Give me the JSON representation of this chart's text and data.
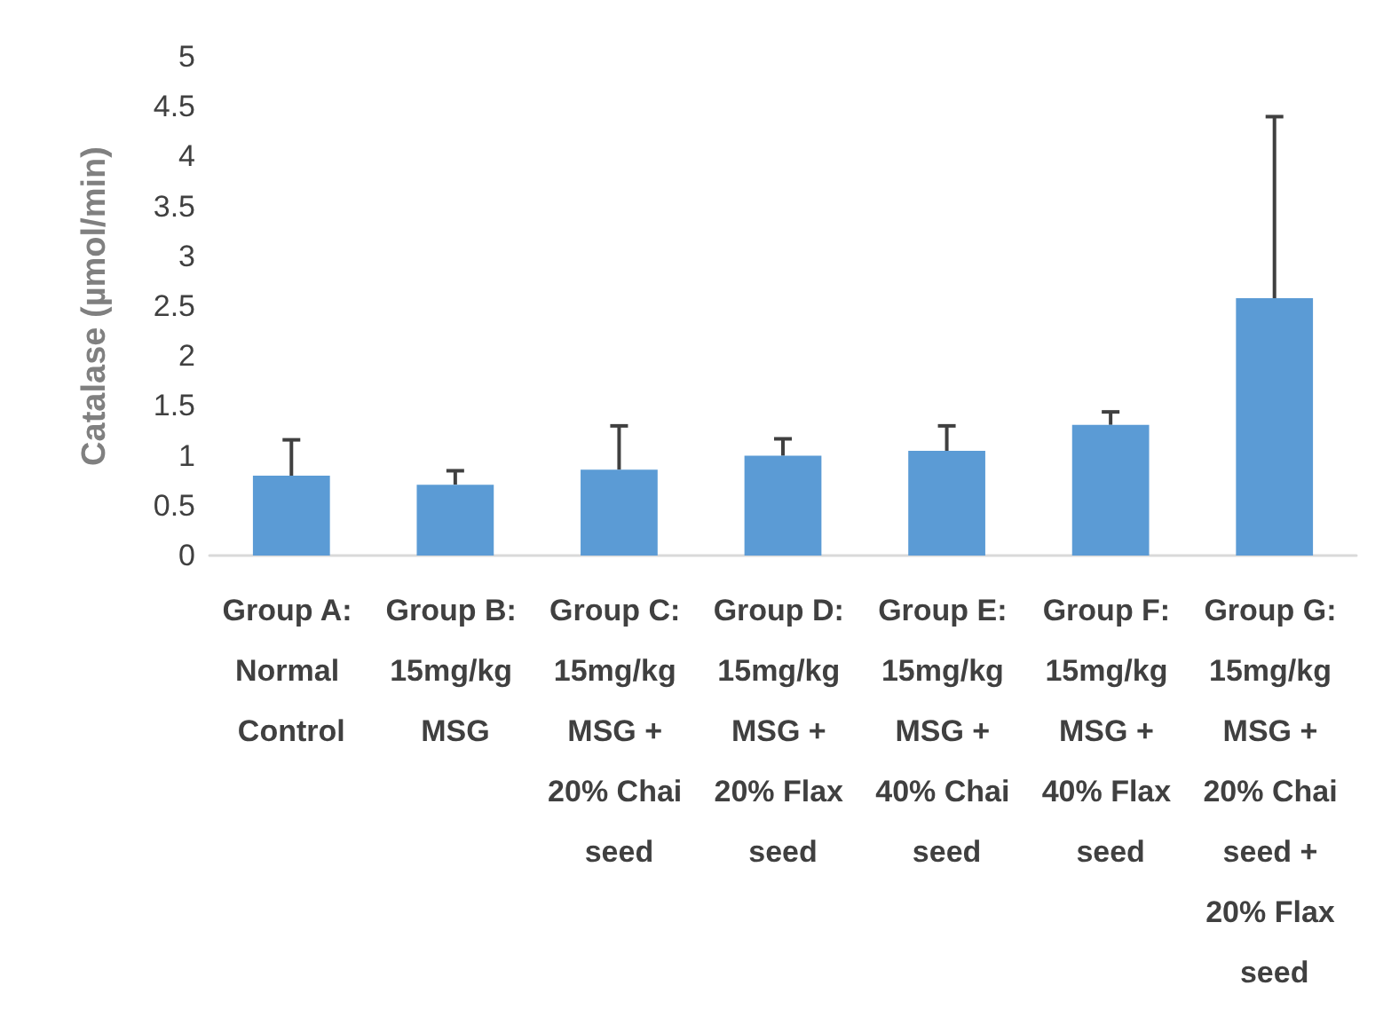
{
  "chart_data": {
    "type": "bar",
    "ylabel": "Catalase (µmol/min)",
    "categories": [
      "Group A: Normal Control",
      "Group B: 15mg/kg MSG",
      "Group C: 15mg/kg MSG + 20% Chai seed",
      "Group D: 15mg/kg MSG + 20% Flax seed",
      "Group E: 15mg/kg MSG + 40% Chai seed",
      "Group F: 15mg/kg MSG + 40% Flax seed",
      "Group G: 15mg/kg MSG + 20% Chai seed + 20% Flax seed"
    ],
    "values": [
      0.8,
      0.71,
      0.86,
      1.0,
      1.05,
      1.31,
      2.58
    ],
    "errors": [
      [
        0.8,
        1.16
      ],
      [
        0.71,
        0.85
      ],
      [
        0.86,
        1.3
      ],
      [
        1.0,
        1.17
      ],
      [
        1.05,
        1.3
      ],
      [
        1.31,
        1.44
      ],
      [
        2.58,
        4.4
      ]
    ],
    "color": "#5b9bd5",
    "ylim": [
      0,
      5
    ],
    "yticks": [
      0,
      0.5,
      1,
      1.5,
      2,
      2.5,
      3,
      3.5,
      4,
      4.5,
      5
    ],
    "grid": false
  }
}
